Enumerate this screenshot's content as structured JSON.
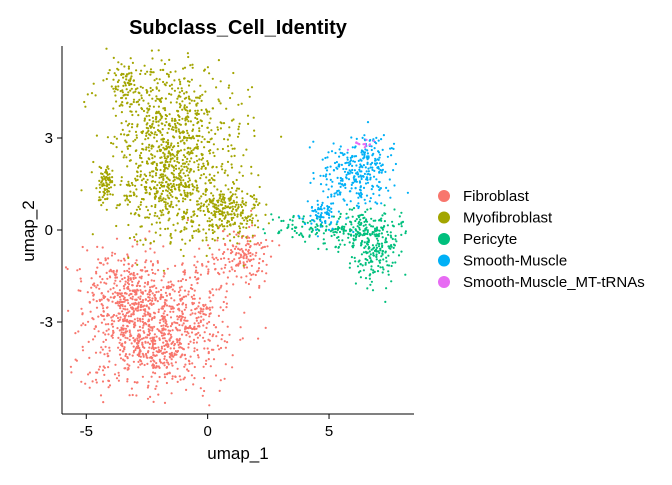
{
  "chart_data": {
    "type": "scatter",
    "title": "Subclass_Cell_Identity",
    "xlabel": "umap_1",
    "ylabel": "umap_2",
    "xlim": [
      -6,
      8.5
    ],
    "ylim": [
      -6,
      6
    ],
    "x_ticks": [
      -5,
      0,
      5
    ],
    "y_ticks": [
      -3,
      0,
      3
    ],
    "grid": false,
    "legend_position": "right",
    "series": [
      {
        "name": "Fibroblast",
        "color": "#F8766D",
        "count": 1400,
        "clusters": [
          [
            -2.3,
            -3.4,
            1.25,
            0.95,
            0.55
          ],
          [
            -3.5,
            -2.0,
            0.8,
            0.7,
            0.2
          ],
          [
            -0.4,
            -2.5,
            0.8,
            1.0,
            0.15
          ],
          [
            1.5,
            -0.9,
            0.6,
            0.4,
            0.1
          ]
        ]
      },
      {
        "name": "Myofibroblast",
        "color": "#A3A500",
        "count": 1500,
        "clusters": [
          [
            -1.5,
            3.3,
            1.3,
            1.1,
            0.45
          ],
          [
            -1.5,
            1.3,
            1.25,
            0.8,
            0.3
          ],
          [
            0.8,
            0.6,
            0.7,
            0.45,
            0.15
          ],
          [
            -3.4,
            4.8,
            0.35,
            0.35,
            0.05
          ],
          [
            -4.2,
            1.5,
            0.15,
            0.3,
            0.05
          ]
        ]
      },
      {
        "name": "Pericyte",
        "color": "#00BF7D",
        "count": 420,
        "clusters": [
          [
            6.3,
            0.0,
            0.9,
            0.35,
            0.5
          ],
          [
            6.9,
            -0.9,
            0.45,
            0.4,
            0.3
          ],
          [
            3.9,
            0.1,
            0.7,
            0.2,
            0.2
          ]
        ]
      },
      {
        "name": "Smooth-Muscle",
        "color": "#00B0F6",
        "count": 380,
        "clusters": [
          [
            6.1,
            1.7,
            0.7,
            0.55,
            0.6
          ],
          [
            6.8,
            2.4,
            0.45,
            0.35,
            0.25
          ],
          [
            4.7,
            0.5,
            0.35,
            0.25,
            0.15
          ]
        ]
      },
      {
        "name": "Smooth-Muscle_MT-tRNAs",
        "color": "#E76BF3",
        "count": 14,
        "clusters": [
          [
            6.3,
            2.85,
            0.3,
            0.1,
            1.0
          ]
        ]
      }
    ]
  }
}
